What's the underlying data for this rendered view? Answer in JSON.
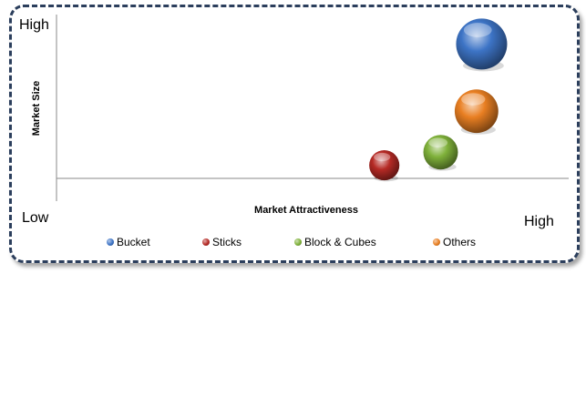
{
  "chart_data": {
    "type": "bubble",
    "xlabel": "Market Attractiveness",
    "ylabel": "Market Size",
    "x_low_label": "Low",
    "x_high_label": "High",
    "y_high_label": "High",
    "xlim": [
      0,
      10
    ],
    "ylim": [
      0,
      10
    ],
    "legend_position": "bottom",
    "series": [
      {
        "name": "Bucket",
        "x": 8.3,
        "y": 8.2,
        "size": 10,
        "color": "#3d74c6"
      },
      {
        "name": "Sticks",
        "x": 6.4,
        "y": 0.8,
        "size": 3.5,
        "color": "#b52a25"
      },
      {
        "name": "Block & Cubes",
        "x": 7.5,
        "y": 1.6,
        "size": 4.6,
        "color": "#7fb13a"
      },
      {
        "name": "Others",
        "x": 8.2,
        "y": 4.1,
        "size": 7.3,
        "color": "#e97f22"
      }
    ]
  }
}
